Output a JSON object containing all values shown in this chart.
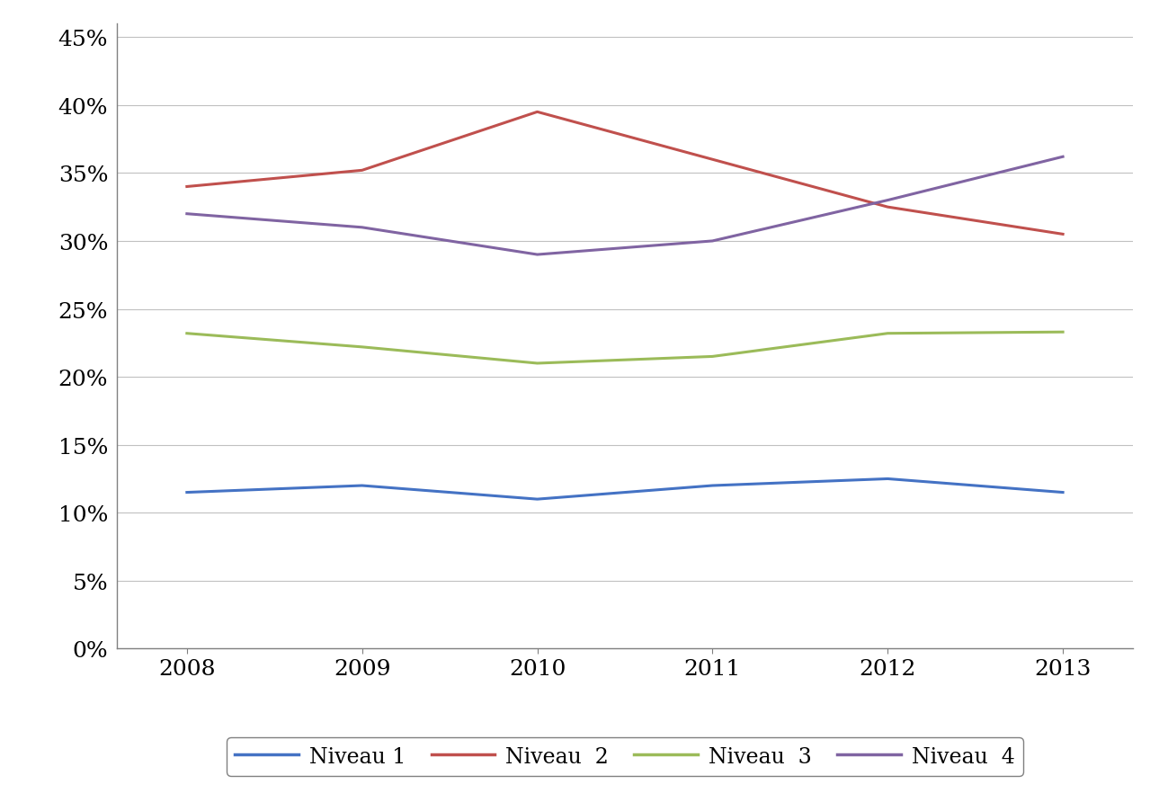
{
  "years": [
    2008,
    2009,
    2010,
    2011,
    2012,
    2013
  ],
  "niveau1": [
    0.115,
    0.12,
    0.11,
    0.12,
    0.125,
    0.115
  ],
  "niveau2": [
    0.34,
    0.352,
    0.395,
    0.36,
    0.325,
    0.305
  ],
  "niveau3": [
    0.232,
    0.222,
    0.21,
    0.215,
    0.232,
    0.233
  ],
  "niveau4": [
    0.32,
    0.31,
    0.29,
    0.3,
    0.33,
    0.362
  ],
  "color1": "#4472C4",
  "color2": "#C0504D",
  "color3": "#9BBB59",
  "color4": "#8064A2",
  "legend_labels": [
    "Niveau 1",
    "Niveau  2",
    "Niveau  3",
    "Niveau  4"
  ],
  "ylim": [
    0,
    0.46
  ],
  "yticks": [
    0.0,
    0.05,
    0.1,
    0.15,
    0.2,
    0.25,
    0.3,
    0.35,
    0.4,
    0.45
  ],
  "background_color": "#FFFFFF",
  "grid_color": "#C0C0C0",
  "spine_color": "#808080",
  "linewidth": 2.2,
  "tick_fontsize": 18,
  "legend_fontsize": 17
}
